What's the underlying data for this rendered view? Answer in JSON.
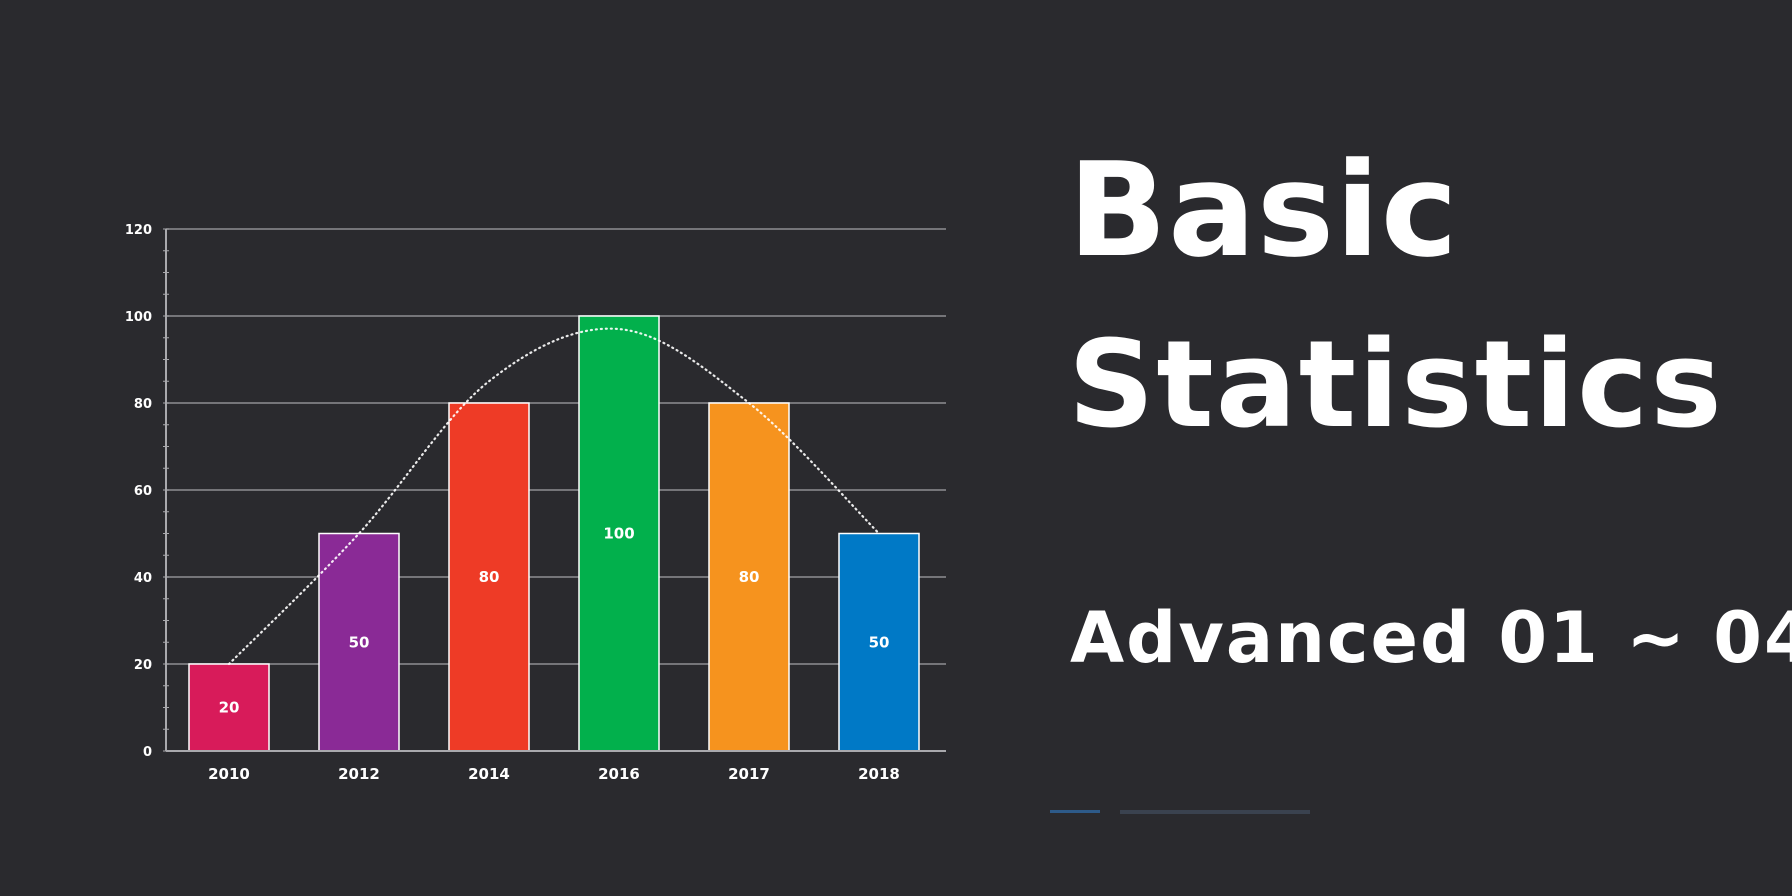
{
  "title": {
    "line1": "Basic",
    "line2": "Statistics"
  },
  "subtitle": "Advanced 01 ~ 04",
  "colors": {
    "background": "#2a2a2e",
    "gridline": "#8e8e92",
    "curve": "#ffffff"
  },
  "chart_data": {
    "type": "bar",
    "categories": [
      "2010",
      "2012",
      "2014",
      "2016",
      "2017",
      "2018"
    ],
    "values": [
      20,
      50,
      80,
      100,
      80,
      50
    ],
    "data_labels": [
      "20",
      "50",
      "80",
      "100",
      "80",
      "50"
    ],
    "bar_colors": [
      "#d81b5a",
      "#8a2a96",
      "#ee3b26",
      "#02b04c",
      "#f6931e",
      "#0079c6"
    ],
    "overlay": {
      "type": "line",
      "style": "dotted",
      "smooth": true,
      "x": [
        "2010",
        "2012",
        "2014",
        "2016",
        "2017",
        "2018"
      ],
      "y": [
        20,
        50,
        85,
        97,
        80,
        50
      ]
    },
    "ylim": [
      0,
      120
    ],
    "yticks": [
      0,
      20,
      40,
      60,
      80,
      100,
      120
    ],
    "ytick_labels": [
      "0",
      "20",
      "40",
      "60",
      "80",
      "100",
      "120"
    ],
    "xlabel": "",
    "ylabel": "",
    "grid": true,
    "legend": "none"
  }
}
